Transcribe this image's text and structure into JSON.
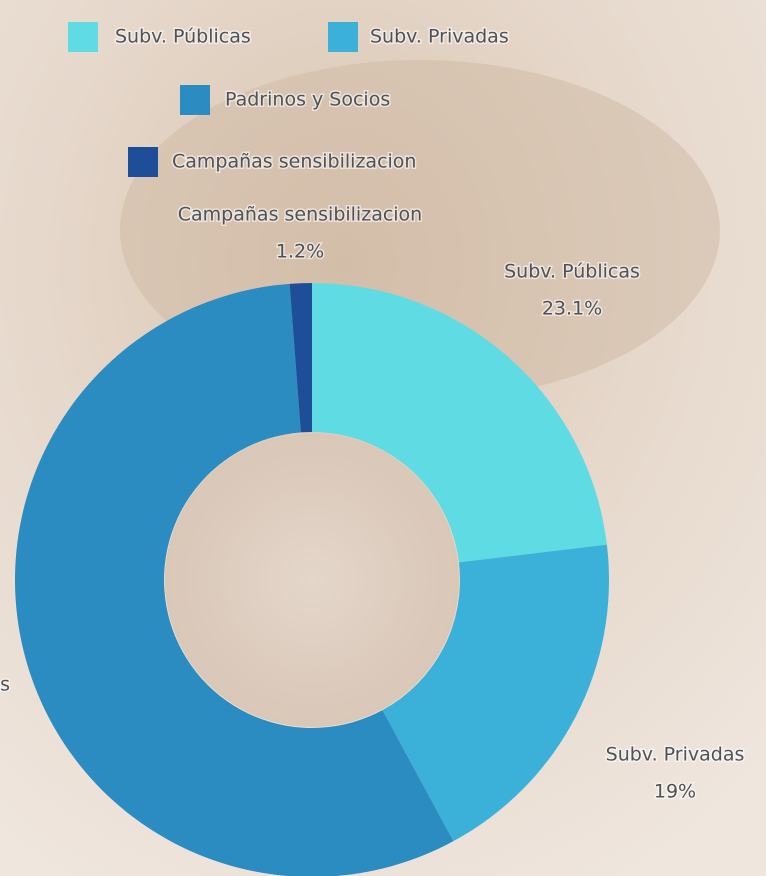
{
  "chart_data": {
    "type": "donut",
    "categories": [
      "Subv. Públicas",
      "Subv. Privadas",
      "Padrinos y Socios",
      "Campañas sensibilizacion"
    ],
    "values": [
      23.1,
      19,
      56.7,
      1.2
    ],
    "value_labels": [
      "23.1%",
      "19%",
      null,
      "1.2%"
    ],
    "colors": [
      "#5fdbe4",
      "#3bb1d9",
      "#2a8cc1",
      "#1f4e98"
    ]
  }
}
